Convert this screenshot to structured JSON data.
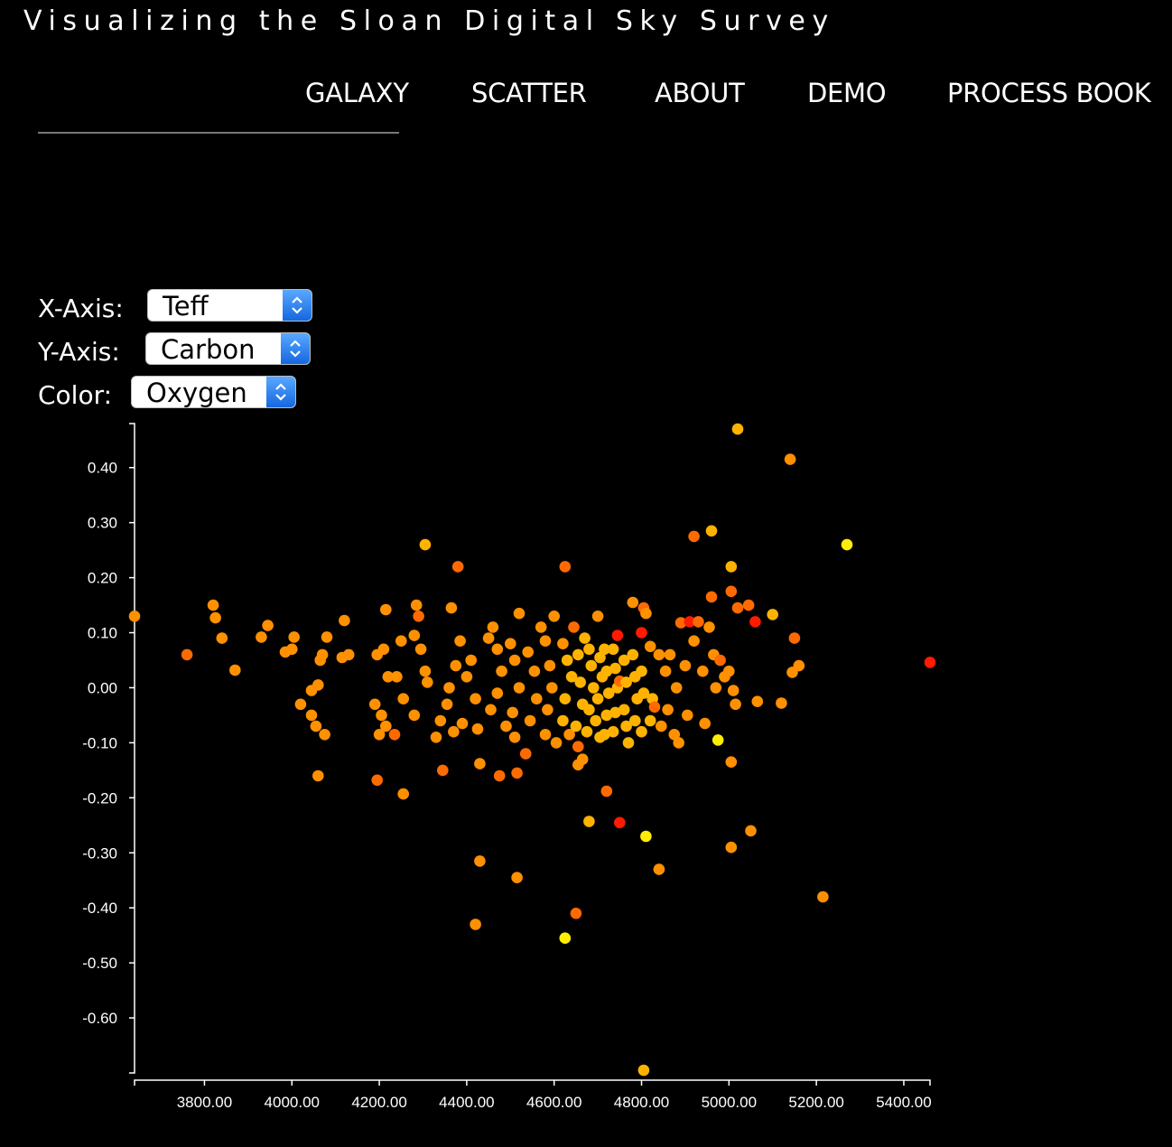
{
  "header": {
    "title": "Visualizing the Sloan Digital Sky Survey"
  },
  "nav": {
    "items": [
      {
        "label": "GALAXY"
      },
      {
        "label": "SCATTER"
      },
      {
        "label": "ABOUT"
      },
      {
        "label": "DEMO"
      },
      {
        "label": "PROCESS BOOK"
      }
    ]
  },
  "controls": {
    "x_axis": {
      "label": "X-Axis:",
      "value": "Teff"
    },
    "y_axis": {
      "label": "Y-Axis:",
      "value": "Carbon"
    },
    "color": {
      "label": "Color:",
      "value": "Oxygen"
    }
  },
  "colors": {
    "background": "#000000",
    "axis": "#ffffff",
    "scale": [
      "#ffee00",
      "#ffb300",
      "#ff9000",
      "#ff6a00",
      "#ff1a00"
    ]
  },
  "icons": {
    "select_arrows": "chevron-up-down-icon"
  },
  "chart_data": {
    "type": "scatter",
    "title": "",
    "xlabel": "Teff",
    "ylabel": "Carbon",
    "color_by": "Oxygen",
    "xlim": [
      3640,
      5460
    ],
    "ylim": [
      -0.7,
      0.48
    ],
    "x_ticks": [
      "3800.00",
      "4000.00",
      "4200.00",
      "4400.00",
      "4600.00",
      "4800.00",
      "5000.00",
      "5200.00",
      "5400.00"
    ],
    "x_tick_values": [
      3800,
      4000,
      4200,
      4400,
      4600,
      4800,
      5000,
      5200,
      5400
    ],
    "y_ticks": [
      "0.40",
      "0.30",
      "0.20",
      "0.10",
      "0.00",
      "-0.10",
      "-0.20",
      "-0.30",
      "-0.40",
      "-0.50",
      "-0.60"
    ],
    "y_tick_values": [
      0.4,
      0.3,
      0.2,
      0.1,
      0.0,
      -0.1,
      -0.2,
      -0.3,
      -0.4,
      -0.5,
      -0.6
    ],
    "grid": false,
    "legend": "none",
    "points": [
      [
        5020,
        0.47,
        1
      ],
      [
        5140,
        0.415,
        2
      ],
      [
        4960,
        0.285,
        1
      ],
      [
        4920,
        0.275,
        3
      ],
      [
        5270,
        0.26,
        0
      ],
      [
        4305,
        0.26,
        1
      ],
      [
        5005,
        0.22,
        1
      ],
      [
        4380,
        0.22,
        3
      ],
      [
        4625,
        0.22,
        3
      ],
      [
        3640,
        0.13,
        2
      ],
      [
        3820,
        0.15,
        2
      ],
      [
        3825,
        0.127,
        2
      ],
      [
        3840,
        0.09,
        2
      ],
      [
        3760,
        0.06,
        3
      ],
      [
        3870,
        0.032,
        2
      ],
      [
        3930,
        0.092,
        2
      ],
      [
        3945,
        0.113,
        2
      ],
      [
        3985,
        0.065,
        2
      ],
      [
        4000,
        0.07,
        2
      ],
      [
        4005,
        0.092,
        2
      ],
      [
        4070,
        0.06,
        2
      ],
      [
        4065,
        0.05,
        2
      ],
      [
        4080,
        0.092,
        2
      ],
      [
        4060,
        0.005,
        2
      ],
      [
        4045,
        -0.005,
        2
      ],
      [
        4020,
        -0.03,
        2
      ],
      [
        4045,
        -0.05,
        2
      ],
      [
        4055,
        -0.07,
        2
      ],
      [
        4075,
        -0.085,
        2
      ],
      [
        4060,
        -0.16,
        2
      ],
      [
        4115,
        0.055,
        2
      ],
      [
        4130,
        0.06,
        2
      ],
      [
        4120,
        0.122,
        2
      ],
      [
        4195,
        0.06,
        2
      ],
      [
        4210,
        0.07,
        2
      ],
      [
        4215,
        0.142,
        2
      ],
      [
        4220,
        0.02,
        2
      ],
      [
        4190,
        -0.03,
        2
      ],
      [
        4205,
        -0.05,
        2
      ],
      [
        4215,
        -0.07,
        2
      ],
      [
        4200,
        -0.085,
        2
      ],
      [
        4235,
        -0.085,
        3
      ],
      [
        4195,
        -0.168,
        3
      ],
      [
        4255,
        -0.193,
        2
      ],
      [
        4250,
        0.085,
        2
      ],
      [
        4280,
        0.095,
        2
      ],
      [
        4285,
        0.15,
        2
      ],
      [
        4290,
        0.13,
        3
      ],
      [
        4295,
        0.07,
        2
      ],
      [
        4305,
        0.03,
        2
      ],
      [
        4310,
        0.01,
        2
      ],
      [
        4255,
        -0.02,
        2
      ],
      [
        4240,
        0.02,
        2
      ],
      [
        4280,
        -0.05,
        2
      ],
      [
        4330,
        -0.09,
        2
      ],
      [
        4345,
        -0.15,
        3
      ],
      [
        4365,
        0.145,
        2
      ],
      [
        4385,
        0.085,
        2
      ],
      [
        4375,
        0.04,
        2
      ],
      [
        4360,
        0.0,
        2
      ],
      [
        4355,
        -0.03,
        2
      ],
      [
        4340,
        -0.06,
        2
      ],
      [
        4370,
        -0.08,
        2
      ],
      [
        4390,
        -0.065,
        2
      ],
      [
        4400,
        0.02,
        2
      ],
      [
        4410,
        0.05,
        2
      ],
      [
        4420,
        -0.02,
        2
      ],
      [
        4425,
        -0.075,
        2
      ],
      [
        4430,
        -0.138,
        2
      ],
      [
        4430,
        -0.315,
        2
      ],
      [
        4420,
        -0.43,
        2
      ],
      [
        4450,
        0.09,
        2
      ],
      [
        4460,
        0.11,
        2
      ],
      [
        4470,
        0.07,
        2
      ],
      [
        4480,
        0.03,
        2
      ],
      [
        4470,
        -0.01,
        2
      ],
      [
        4455,
        -0.04,
        2
      ],
      [
        4490,
        -0.07,
        2
      ],
      [
        4475,
        -0.16,
        3
      ],
      [
        4500,
        0.08,
        2
      ],
      [
        4510,
        0.05,
        2
      ],
      [
        4520,
        0.0,
        2
      ],
      [
        4505,
        -0.045,
        2
      ],
      [
        4510,
        -0.09,
        2
      ],
      [
        4515,
        -0.155,
        3
      ],
      [
        4520,
        0.135,
        2
      ],
      [
        4515,
        -0.345,
        2
      ],
      [
        4540,
        0.065,
        2
      ],
      [
        4555,
        0.03,
        2
      ],
      [
        4560,
        -0.02,
        2
      ],
      [
        4545,
        -0.06,
        2
      ],
      [
        4535,
        -0.12,
        3
      ],
      [
        4570,
        0.11,
        2
      ],
      [
        4580,
        0.085,
        2
      ],
      [
        4590,
        0.04,
        2
      ],
      [
        4595,
        0.0,
        2
      ],
      [
        4585,
        -0.04,
        2
      ],
      [
        4580,
        -0.085,
        2
      ],
      [
        4600,
        0.13,
        2
      ],
      [
        4605,
        -0.1,
        2
      ],
      [
        4620,
        0.08,
        2
      ],
      [
        4630,
        0.05,
        1
      ],
      [
        4640,
        0.02,
        1
      ],
      [
        4625,
        -0.02,
        1
      ],
      [
        4620,
        -0.06,
        1
      ],
      [
        4635,
        -0.085,
        2
      ],
      [
        4645,
        0.11,
        3
      ],
      [
        4655,
        0.06,
        1
      ],
      [
        4660,
        0.01,
        1
      ],
      [
        4665,
        -0.03,
        1
      ],
      [
        4650,
        -0.07,
        1
      ],
      [
        4655,
        -0.107,
        3
      ],
      [
        4655,
        -0.14,
        2
      ],
      [
        4665,
        -0.13,
        2
      ],
      [
        4650,
        -0.41,
        3
      ],
      [
        4670,
        0.09,
        1
      ],
      [
        4680,
        0.07,
        1
      ],
      [
        4685,
        0.04,
        1
      ],
      [
        4690,
        0.0,
        1
      ],
      [
        4680,
        -0.04,
        1
      ],
      [
        4675,
        -0.08,
        1
      ],
      [
        4700,
        0.13,
        2
      ],
      [
        4705,
        0.055,
        1
      ],
      [
        4710,
        0.02,
        1
      ],
      [
        4700,
        -0.02,
        1
      ],
      [
        4695,
        -0.06,
        1
      ],
      [
        4705,
        -0.09,
        1
      ],
      [
        4715,
        0.07,
        1
      ],
      [
        4720,
        0.03,
        1
      ],
      [
        4725,
        -0.01,
        1
      ],
      [
        4720,
        -0.05,
        1
      ],
      [
        4715,
        -0.085,
        1
      ],
      [
        4720,
        -0.188,
        3
      ],
      [
        4735,
        0.07,
        1
      ],
      [
        4740,
        0.035,
        1
      ],
      [
        4745,
        0.0,
        1
      ],
      [
        4740,
        -0.045,
        1
      ],
      [
        4735,
        -0.08,
        1
      ],
      [
        4745,
        0.095,
        4
      ],
      [
        4750,
        0.012,
        3
      ],
      [
        4750,
        -0.245,
        4
      ],
      [
        4760,
        0.05,
        1
      ],
      [
        4765,
        0.01,
        1
      ],
      [
        4760,
        -0.04,
        1
      ],
      [
        4765,
        -0.07,
        1
      ],
      [
        4770,
        -0.1,
        1
      ],
      [
        4780,
        0.06,
        1
      ],
      [
        4785,
        0.02,
        1
      ],
      [
        4790,
        -0.02,
        1
      ],
      [
        4785,
        -0.06,
        1
      ],
      [
        4780,
        0.155,
        2
      ],
      [
        4800,
        0.1,
        4
      ],
      [
        4805,
        0.145,
        3
      ],
      [
        4810,
        0.135,
        2
      ],
      [
        4800,
        0.03,
        1
      ],
      [
        4805,
        -0.01,
        1
      ],
      [
        4800,
        -0.08,
        1
      ],
      [
        4820,
        0.075,
        2
      ],
      [
        4825,
        -0.02,
        1
      ],
      [
        4820,
        -0.06,
        1
      ],
      [
        4830,
        -0.035,
        3
      ],
      [
        4840,
        0.06,
        2
      ],
      [
        4845,
        -0.07,
        2
      ],
      [
        4855,
        0.03,
        2
      ],
      [
        4860,
        -0.04,
        2
      ],
      [
        4865,
        0.06,
        2
      ],
      [
        4880,
        0.0,
        2
      ],
      [
        4885,
        -0.1,
        2
      ],
      [
        4875,
        -0.085,
        2
      ],
      [
        4890,
        0.118,
        3
      ],
      [
        4900,
        0.04,
        2
      ],
      [
        4905,
        -0.05,
        2
      ],
      [
        4910,
        0.12,
        4
      ],
      [
        4920,
        0.085,
        2
      ],
      [
        4930,
        0.12,
        3
      ],
      [
        4940,
        0.03,
        2
      ],
      [
        4945,
        -0.065,
        2
      ],
      [
        4955,
        0.11,
        2
      ],
      [
        4960,
        0.165,
        3
      ],
      [
        4965,
        0.06,
        2
      ],
      [
        4970,
        0.0,
        2
      ],
      [
        4975,
        -0.095,
        0
      ],
      [
        4980,
        0.05,
        3
      ],
      [
        4990,
        0.02,
        2
      ],
      [
        5005,
        0.175,
        3
      ],
      [
        5000,
        0.03,
        2
      ],
      [
        5010,
        -0.005,
        2
      ],
      [
        5015,
        -0.03,
        2
      ],
      [
        5005,
        -0.135,
        2
      ],
      [
        5005,
        -0.29,
        2
      ],
      [
        5020,
        0.145,
        3
      ],
      [
        5045,
        0.15,
        3
      ],
      [
        5050,
        -0.26,
        2
      ],
      [
        5060,
        0.12,
        4
      ],
      [
        5065,
        -0.025,
        2
      ],
      [
        5100,
        0.133,
        1
      ],
      [
        5120,
        -0.028,
        2
      ],
      [
        5150,
        0.09,
        3
      ],
      [
        5145,
        0.028,
        2
      ],
      [
        5160,
        0.04,
        2
      ],
      [
        5215,
        -0.38,
        2
      ],
      [
        5460,
        0.046,
        4
      ],
      [
        4810,
        -0.27,
        0
      ],
      [
        4840,
        -0.33,
        2
      ],
      [
        4680,
        -0.243,
        1
      ],
      [
        4625,
        -0.455,
        0
      ],
      [
        4805,
        -0.695,
        1
      ]
    ]
  }
}
